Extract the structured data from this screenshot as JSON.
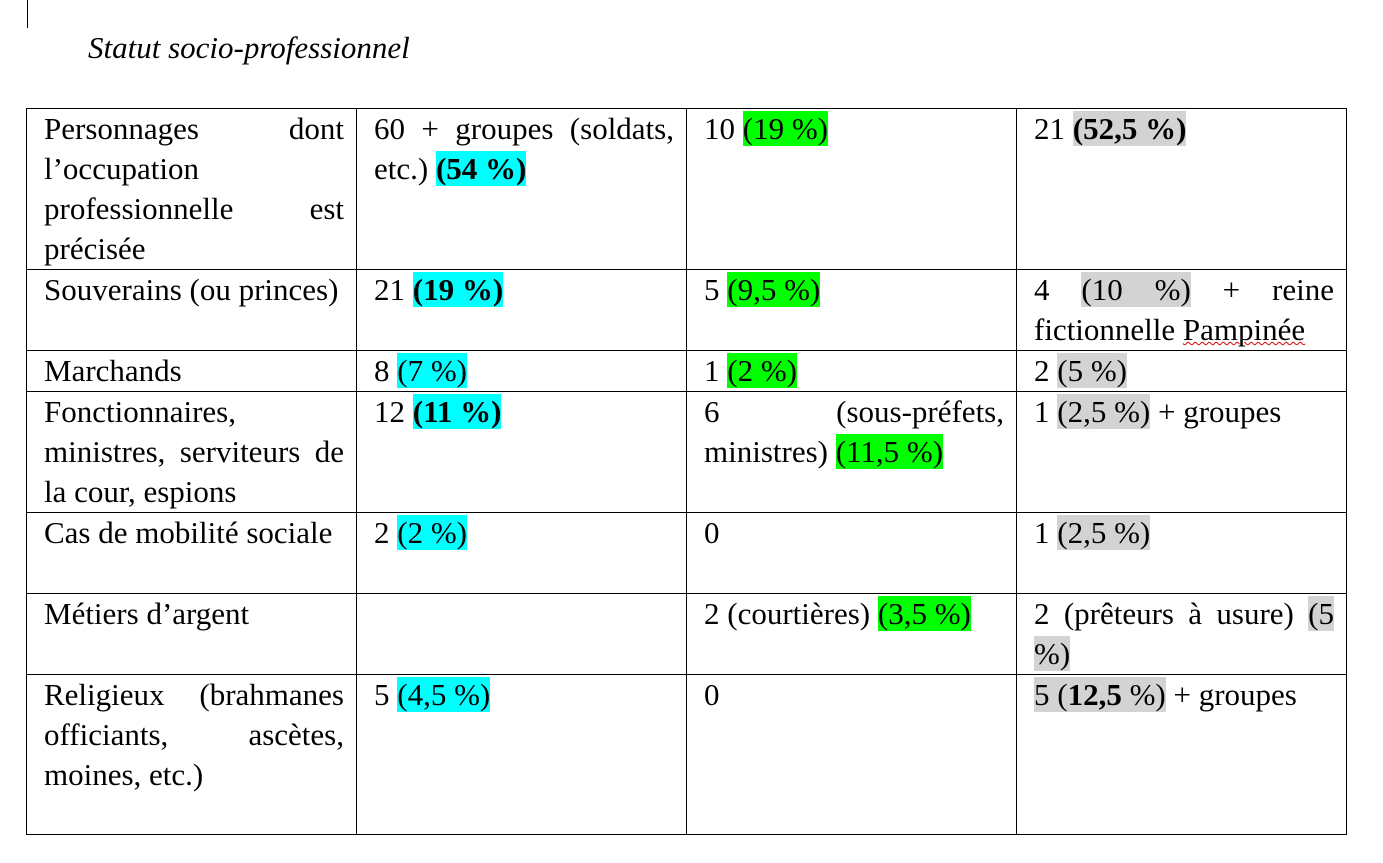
{
  "title": "Statut socio-professionnel",
  "table": {
    "rows": [
      [
        [
          "Personnages dont l’occupation professionnelle est précisée"
        ],
        [
          "60 + groupes (soldats, etc.) ",
          "(54 %)"
        ],
        [
          "10 ",
          "(19 %)"
        ],
        [
          "21 ",
          "(52,5 %)"
        ]
      ],
      [
        [
          "Souverains (ou princes)"
        ],
        [
          "21 ",
          "(19 %)"
        ],
        [
          "5 ",
          "(9,5 %)"
        ],
        [
          "4 ",
          "(10 %)",
          " + reine fictionnelle ",
          "Pampinée"
        ]
      ],
      [
        [
          "Marchands"
        ],
        [
          "8 ",
          "(7 %)"
        ],
        [
          "1 ",
          "(2 %)"
        ],
        [
          "2 ",
          "(5 %)"
        ]
      ],
      [
        [
          "Fonctionnaires, ministres, serviteurs de la cour, espions"
        ],
        [
          "12 ",
          "(11 %)"
        ],
        [
          "6 (sous-préfets, ministres) ",
          "(11,5 %)"
        ],
        [
          "1 ",
          "(2,5 %)",
          " + groupes"
        ]
      ],
      [
        [
          "Cas de mobilité sociale"
        ],
        [
          "2 ",
          "(2 %)"
        ],
        [
          "0"
        ],
        [
          "1 ",
          "(2,5 %)"
        ]
      ],
      [
        [
          "Métiers d’argent"
        ],
        [],
        [
          "2 (courtières) ",
          "(3,5 %)"
        ],
        [
          "2 (prêteurs à usure) ",
          "(5 %)"
        ]
      ],
      [
        [
          "Religieux (brahmanes officiants, ascètes, moines, etc.)"
        ],
        [
          "5 ",
          "(4,5 %)"
        ],
        [
          "0"
        ],
        [
          "5 (",
          "12,5",
          " %)",
          " + groupes"
        ]
      ]
    ]
  }
}
